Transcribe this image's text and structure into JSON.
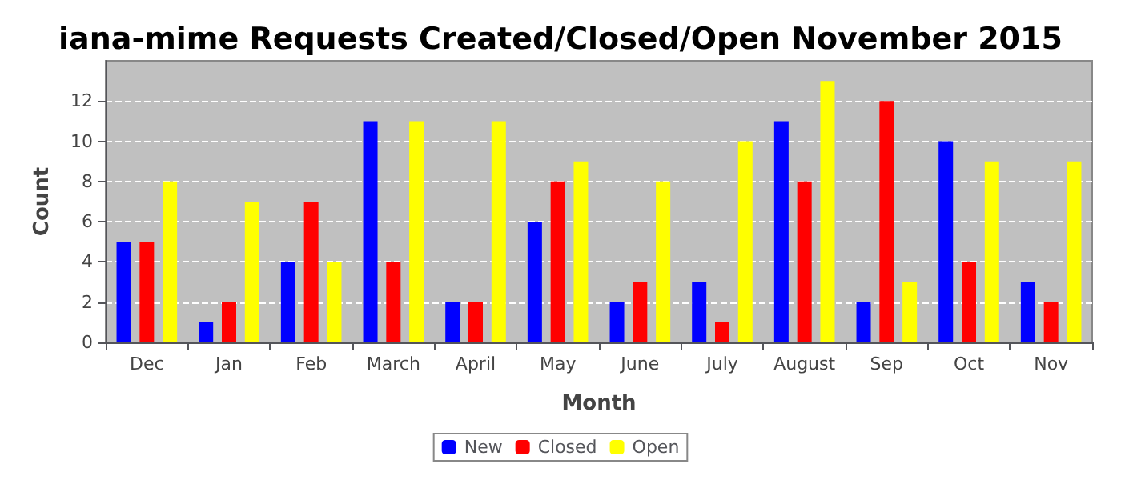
{
  "chart_data": {
    "type": "bar",
    "title": "iana-mime Requests Created/Closed/Open November 2015",
    "xlabel": "Month",
    "ylabel": "Count",
    "categories": [
      "Dec",
      "Jan",
      "Feb",
      "March",
      "April",
      "May",
      "June",
      "July",
      "August",
      "Sep",
      "Oct",
      "Nov"
    ],
    "series": [
      {
        "name": "New",
        "color": "#0000ff",
        "values": [
          5,
          1,
          4,
          11,
          2,
          6,
          2,
          3,
          11,
          2,
          10,
          3
        ]
      },
      {
        "name": "Closed",
        "color": "#ff0000",
        "values": [
          5,
          2,
          7,
          4,
          2,
          8,
          3,
          1,
          8,
          12,
          4,
          2
        ]
      },
      {
        "name": "Open",
        "color": "#ffff00",
        "values": [
          8,
          7,
          4,
          11,
          11,
          9,
          8,
          10,
          13,
          3,
          9,
          9
        ]
      }
    ],
    "ylim": [
      0,
      14
    ],
    "yticks": [
      0,
      2,
      4,
      6,
      8,
      10,
      12
    ],
    "grid": "y",
    "legend": "bottom"
  }
}
